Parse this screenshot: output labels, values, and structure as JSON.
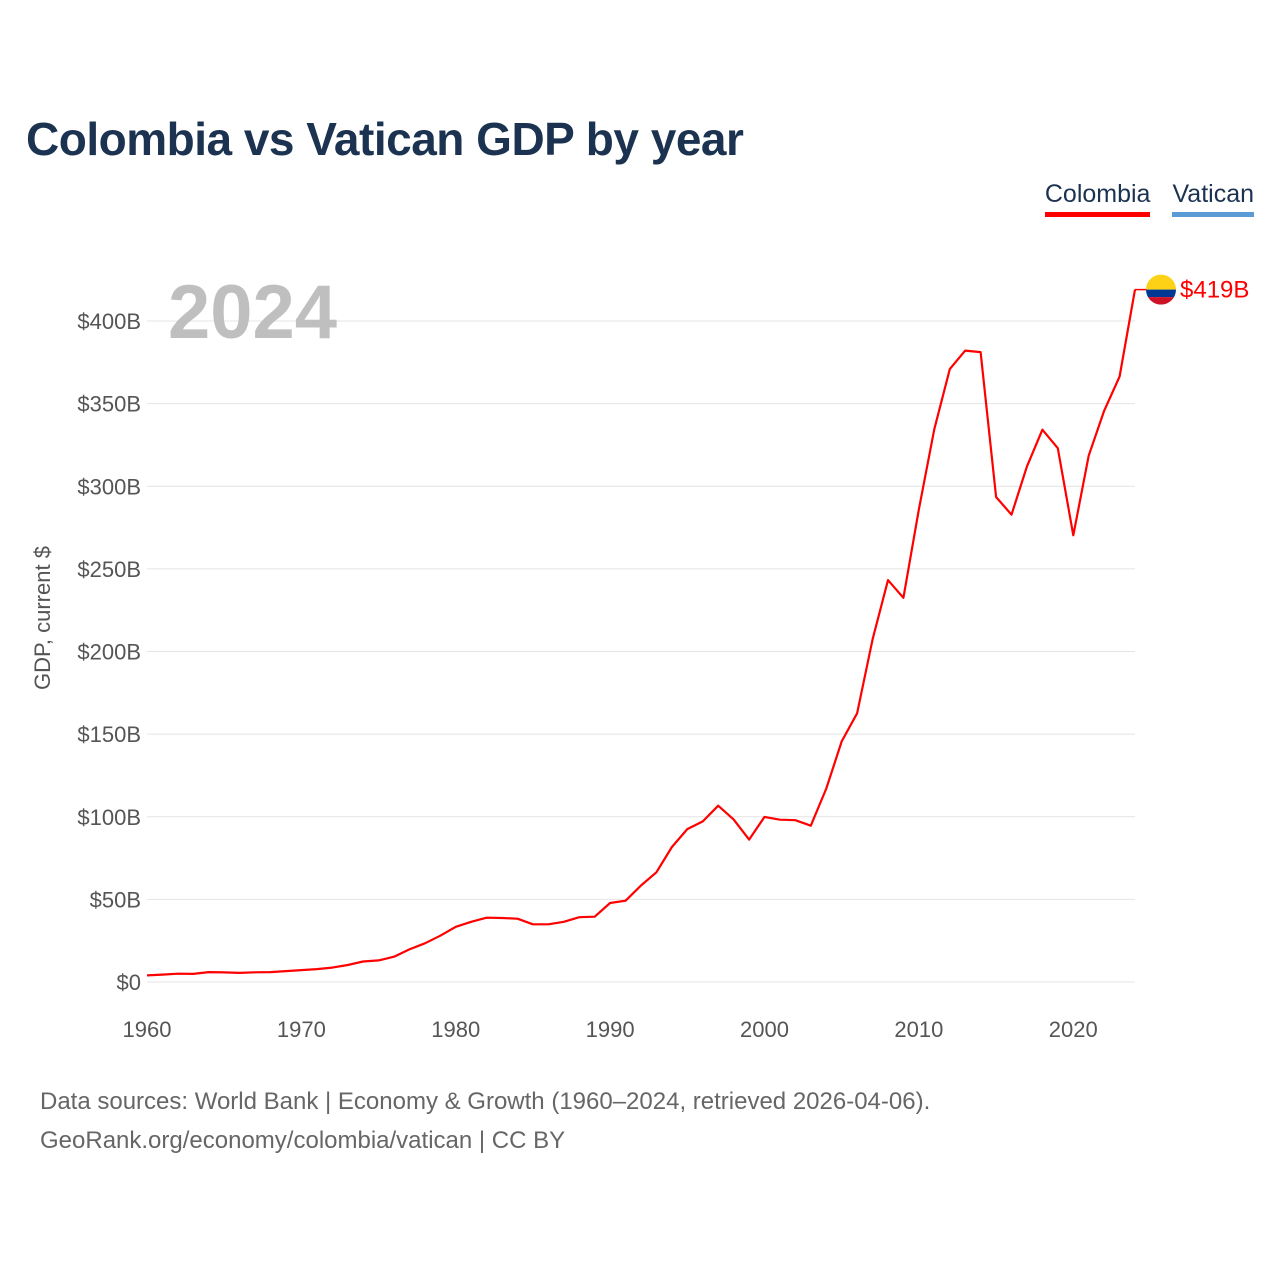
{
  "title": "Colombia vs Vatican GDP by year",
  "legend": [
    {
      "name": "Colombia",
      "color": "#ff0000"
    },
    {
      "name": "Vatican",
      "color": "#5b9bd5"
    }
  ],
  "year_label": "2024",
  "end_label": "$419B",
  "flag": {
    "name": "colombia-flag",
    "colors": [
      "#fcd116",
      "#003893",
      "#ce1126"
    ]
  },
  "source_lines": [
    "Data sources: World Bank | Economy & Growth (1960–2024, retrieved 2026-04-06).",
    "GeoRank.org/economy/colombia/vatican | CC BY"
  ],
  "chart_data": {
    "type": "line",
    "title": "Colombia vs Vatican GDP by year",
    "xlabel": "",
    "ylabel": "GDP, current $",
    "xlim": [
      1960,
      2024
    ],
    "ylim": [
      0,
      400
    ],
    "y_unit": "billion USD",
    "grid": true,
    "legend_position": "top-right",
    "x_ticks": [
      1960,
      1970,
      1980,
      1990,
      2000,
      2010,
      2020
    ],
    "x_tick_labels": [
      "1960",
      "1970",
      "1980",
      "1990",
      "2000",
      "2010",
      "2020"
    ],
    "y_ticks": [
      0,
      50,
      100,
      150,
      200,
      250,
      300,
      350,
      400
    ],
    "y_tick_labels": [
      "$0",
      "$50B",
      "$100B",
      "$150B",
      "$200B",
      "$250B",
      "$300B",
      "$350B",
      "$400B"
    ],
    "series": [
      {
        "name": "Colombia",
        "color": "#ff0000",
        "x": [
          1960,
          1961,
          1962,
          1963,
          1964,
          1965,
          1966,
          1967,
          1968,
          1969,
          1970,
          1971,
          1972,
          1973,
          1974,
          1975,
          1976,
          1977,
          1978,
          1979,
          1980,
          1981,
          1982,
          1983,
          1984,
          1985,
          1986,
          1987,
          1988,
          1989,
          1990,
          1991,
          1992,
          1993,
          1994,
          1995,
          1996,
          1997,
          1998,
          1999,
          2000,
          2001,
          2002,
          2003,
          2004,
          2005,
          2006,
          2007,
          2008,
          2009,
          2010,
          2011,
          2012,
          2013,
          2014,
          2015,
          2016,
          2017,
          2018,
          2019,
          2020,
          2021,
          2022,
          2023,
          2024
        ],
        "values": [
          4.0,
          4.5,
          5.0,
          4.9,
          6.0,
          5.8,
          5.5,
          5.9,
          6.0,
          6.6,
          7.2,
          7.8,
          8.7,
          10.3,
          12.4,
          13.1,
          15.3,
          19.7,
          23.4,
          28.0,
          33.4,
          36.4,
          38.9,
          38.7,
          38.3,
          34.9,
          34.9,
          36.4,
          39.2,
          39.5,
          47.8,
          49.2,
          58.4,
          66.4,
          81.7,
          92.5,
          97.2,
          106.7,
          98.4,
          86.2,
          99.9,
          98.2,
          97.9,
          94.6,
          117.1,
          145.6,
          162.6,
          207.4,
          243.2,
          232.5,
          286.1,
          334.5,
          370.9,
          382.1,
          381.2,
          293.5,
          282.8,
          311.9,
          334.2,
          323.0,
          270.3,
          318.5,
          345.6,
          366.4,
          419.0
        ]
      },
      {
        "name": "Vatican",
        "color": "#5b9bd5",
        "x": [],
        "values": []
      }
    ]
  }
}
